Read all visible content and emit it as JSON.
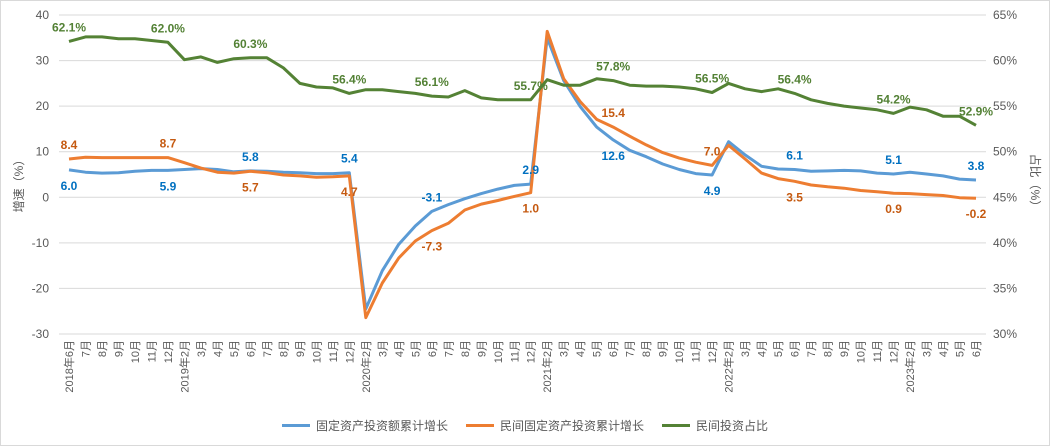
{
  "chart_data": {
    "type": "line",
    "title": "",
    "ylabel": "增速（%）",
    "y2label": "占比（%）",
    "ylim": [
      -30,
      40
    ],
    "y2lim": [
      30,
      65
    ],
    "yticks": [
      "40",
      "30",
      "20",
      "10",
      "0",
      "-10",
      "-20",
      "-30"
    ],
    "y2ticks": [
      "65%",
      "60%",
      "55%",
      "50%",
      "45%",
      "40%",
      "35%",
      "30%"
    ],
    "grid": true,
    "legend_position": "bottom",
    "categories": [
      "2018年6月",
      "7月",
      "8月",
      "9月",
      "10月",
      "11月",
      "12月",
      "2019年2月",
      "3月",
      "4月",
      "5月",
      "6月",
      "7月",
      "8月",
      "9月",
      "10月",
      "11月",
      "12月",
      "2020年2月",
      "3月",
      "4月",
      "5月",
      "6月",
      "7月",
      "8月",
      "9月",
      "10月",
      "11月",
      "12月",
      "2021年2月",
      "3月",
      "4月",
      "5月",
      "6月",
      "7月",
      "8月",
      "9月",
      "10月",
      "11月",
      "12月",
      "2022年2月",
      "3月",
      "4月",
      "5月",
      "6月",
      "7月",
      "8月",
      "9月",
      "10月",
      "11月",
      "12月",
      "2023年2月",
      "3月",
      "4月",
      "5月",
      "6月"
    ],
    "series": [
      {
        "name": "固定资产投资额累计增长",
        "axis": "left",
        "color": "#5B9BD5",
        "label_color": "#0070C0",
        "values": [
          6.0,
          5.5,
          5.3,
          5.4,
          5.7,
          5.9,
          5.9,
          6.1,
          6.3,
          6.1,
          5.6,
          5.8,
          5.7,
          5.5,
          5.4,
          5.2,
          5.2,
          5.4,
          -24.5,
          -16.1,
          -10.3,
          -6.3,
          -3.1,
          -1.6,
          -0.3,
          0.8,
          1.8,
          2.6,
          2.9,
          35.0,
          25.6,
          19.9,
          15.4,
          12.6,
          10.3,
          8.9,
          7.3,
          6.1,
          5.2,
          4.9,
          12.2,
          9.3,
          6.8,
          6.2,
          6.1,
          5.7,
          5.8,
          5.9,
          5.8,
          5.3,
          5.1,
          5.5,
          5.1,
          4.7,
          4.0,
          3.8
        ],
        "data_labels": [
          {
            "index": 0,
            "text": "6.0"
          },
          {
            "index": 6,
            "text": "5.9"
          },
          {
            "index": 11,
            "text": "5.8"
          },
          {
            "index": 17,
            "text": "5.4"
          },
          {
            "index": 22,
            "text": "-3.1"
          },
          {
            "index": 28,
            "text": "2.9"
          },
          {
            "index": 33,
            "text": "12.6"
          },
          {
            "index": 39,
            "text": "4.9"
          },
          {
            "index": 44,
            "text": "6.1"
          },
          {
            "index": 50,
            "text": "5.1"
          },
          {
            "index": 55,
            "text": "3.8"
          }
        ]
      },
      {
        "name": "民间固定资产投资累计增长",
        "axis": "left",
        "color": "#ED7D31",
        "label_color": "#C55A11",
        "values": [
          8.4,
          8.8,
          8.7,
          8.7,
          8.7,
          8.7,
          8.7,
          7.6,
          6.4,
          5.5,
          5.3,
          5.7,
          5.4,
          4.9,
          4.7,
          4.4,
          4.5,
          4.7,
          -26.4,
          -18.8,
          -13.3,
          -9.6,
          -7.3,
          -5.7,
          -2.8,
          -1.5,
          -0.7,
          0.2,
          1.0,
          36.4,
          26.0,
          21.0,
          17.1,
          15.4,
          13.4,
          11.5,
          9.8,
          8.6,
          7.7,
          7.0,
          11.4,
          8.4,
          5.3,
          4.1,
          3.5,
          2.7,
          2.3,
          2.0,
          1.5,
          1.2,
          0.9,
          0.8,
          0.6,
          0.4,
          -0.1,
          -0.2
        ],
        "data_labels": [
          {
            "index": 0,
            "text": "8.4"
          },
          {
            "index": 6,
            "text": "8.7"
          },
          {
            "index": 11,
            "text": "5.7"
          },
          {
            "index": 17,
            "text": "4.7"
          },
          {
            "index": 22,
            "text": "-7.3"
          },
          {
            "index": 28,
            "text": "1.0"
          },
          {
            "index": 33,
            "text": "15.4"
          },
          {
            "index": 39,
            "text": "7.0"
          },
          {
            "index": 44,
            "text": "3.5"
          },
          {
            "index": 50,
            "text": "0.9"
          },
          {
            "index": 55,
            "text": "-0.2"
          }
        ]
      },
      {
        "name": "民间投资占比",
        "axis": "right",
        "color": "#548235",
        "label_color": "#538135",
        "values": [
          62.1,
          62.6,
          62.6,
          62.4,
          62.4,
          62.2,
          62.0,
          60.1,
          60.4,
          59.8,
          60.2,
          60.3,
          60.3,
          59.2,
          57.5,
          57.1,
          57.0,
          56.4,
          56.8,
          56.8,
          56.6,
          56.4,
          56.1,
          56.0,
          56.7,
          55.9,
          55.7,
          55.7,
          55.7,
          57.9,
          57.3,
          57.3,
          58.0,
          57.8,
          57.3,
          57.2,
          57.2,
          57.1,
          56.9,
          56.5,
          57.5,
          56.9,
          56.6,
          56.9,
          56.4,
          55.7,
          55.3,
          55.0,
          54.8,
          54.6,
          54.2,
          54.9,
          54.6,
          53.9,
          53.9,
          52.9
        ],
        "data_labels": [
          {
            "index": 0,
            "text": "62.1%"
          },
          {
            "index": 6,
            "text": "62.0%"
          },
          {
            "index": 11,
            "text": "60.3%"
          },
          {
            "index": 17,
            "text": "56.4%"
          },
          {
            "index": 22,
            "text": "56.1%"
          },
          {
            "index": 28,
            "text": "55.7%"
          },
          {
            "index": 33,
            "text": "57.8%"
          },
          {
            "index": 39,
            "text": "56.5%"
          },
          {
            "index": 44,
            "text": "56.4%"
          },
          {
            "index": 50,
            "text": "54.2%"
          },
          {
            "index": 55,
            "text": "52.9%"
          }
        ]
      }
    ]
  }
}
